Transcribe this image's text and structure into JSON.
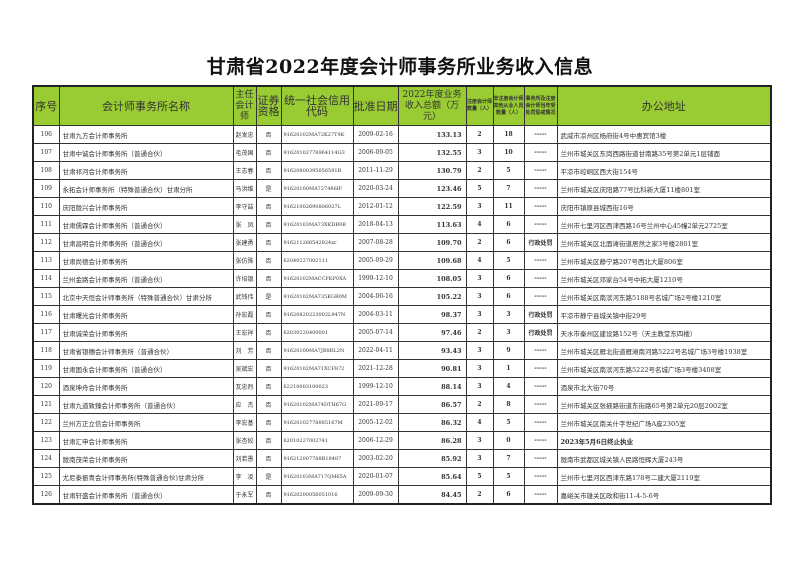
{
  "title": "甘肃省2022年度会计师事务所业务收入信息",
  "headers": {
    "seq": "序号",
    "name": "会计师事务所名称",
    "chief": "主任会计师",
    "securities": "证券资格",
    "credit_code": "统一社会信用代码",
    "approval_date": "批准日期",
    "income": "2022年度业务收入总额（万元）",
    "cpa_count": "注册会计师数量（人）",
    "other_count": "非注册会计师其他从业人员数量（人）",
    "penalty": "事务所及注册会计师当年受处罚惩戒情况",
    "address": "办公地址"
  },
  "rows": [
    {
      "seq": "106",
      "name": "甘肃九方会计师事务所",
      "chief": "赵发忠",
      "securities": "否",
      "code": "91620102MA72K27T9K",
      "date": "2009-02-16",
      "income": "133.13",
      "cpa": "2",
      "other": "18",
      "penalty": "-----",
      "address": "武威市凉州区杨府街4号中惠宾馆3楼"
    },
    {
      "seq": "107",
      "name": "甘肃中诚会计师事务所（普通合伙）",
      "chief": "毛茂国",
      "securities": "否",
      "code": "91620102778964114G3",
      "date": "2006-09-05",
      "income": "132.55",
      "cpa": "3",
      "other": "10",
      "penalty": "-----",
      "address": "兰州市城关区东岗西路街道甘南路35号第2单元1层铺面"
    },
    {
      "seq": "108",
      "name": "甘肃祁河会计师事务所",
      "chief": "王志春",
      "securities": "否",
      "code": "91620800395056591B",
      "date": "2011-11-29",
      "income": "130.79",
      "cpa": "2",
      "other": "5",
      "penalty": "-----",
      "address": "平凉市崆峒区西大街154号"
    },
    {
      "seq": "109",
      "name": "永拓会计师事务所（特殊普通合伙）甘肃分所",
      "chief": "马洪维",
      "securities": "是",
      "code": "91620100MA727486IF",
      "date": "2020-03-24",
      "income": "123.46",
      "cpa": "5",
      "other": "7",
      "penalty": "-----",
      "address": "兰州市城关区庆阳路77号比科新大厦11楼801室"
    },
    {
      "seq": "110",
      "name": "庆阳陇兴会计师事务所",
      "chief": "李守喆",
      "securities": "否",
      "code": "91621002690806027L",
      "date": "2012-01-12",
      "income": "122.59",
      "cpa": "3",
      "other": "11",
      "penalty": "-----",
      "address": "庆阳市镇原县城西街16号"
    },
    {
      "seq": "111",
      "name": "甘肃儒霖会计师事务所（普通合伙）",
      "chief": "张　凤",
      "securities": "否",
      "code": "91620103MA73XKDB9B",
      "date": "2018-04-13",
      "income": "113.63",
      "cpa": "4",
      "other": "6",
      "penalty": "-----",
      "address": "兰州市七里河区西津西路16号兰州中心45幢2单元2725室"
    },
    {
      "seq": "112",
      "name": "甘肃昌明会计师事务所（普通合伙）",
      "chief": "张建勇",
      "securities": "否",
      "code": "916211266542924xr",
      "date": "2007-08-28",
      "income": "109.70",
      "cpa": "2",
      "other": "6",
      "penalty": "行政处罚",
      "address": "兰州市城关区北面滩街道居然之家3号楼2801室"
    },
    {
      "seq": "113",
      "name": "甘肃尚德会计师事务所",
      "chief": "张仿殊",
      "securities": "否",
      "code": "62040227002111",
      "date": "2005-09-29",
      "income": "109.68",
      "cpa": "4",
      "other": "5",
      "penalty": "-----",
      "address": "兰州市城关区静宁路207号西北大厦806室"
    },
    {
      "seq": "114",
      "name": "兰州金路会计师事务所（普通合伙）",
      "chief": "许培银",
      "securities": "否",
      "code": "91620102MACCFKP0XA",
      "date": "1999-12-10",
      "income": "108.05",
      "cpa": "3",
      "other": "6",
      "penalty": "-----",
      "address": "兰州市城关区邓家台54号中拓大厦1210号"
    },
    {
      "seq": "115",
      "name": "北京中天恒会计师事务所（特殊普通合伙）甘肃分所",
      "chief": "武钱伟",
      "securities": "是",
      "code": "91620102MA735KGB0M",
      "date": "2004-06-16",
      "income": "105.22",
      "cpa": "3",
      "other": "6",
      "penalty": "-----",
      "address": "兰州市城关区南滨河东路5188号名城广场2号楼1210室"
    },
    {
      "seq": "116",
      "name": "甘肃曙光会计师事务所",
      "chief": "孙宏磊",
      "securities": "否",
      "code": "91620820223002L947N",
      "date": "2004-03-11",
      "income": "98.37",
      "cpa": "3",
      "other": "3",
      "penalty": "行政处罚",
      "address": "平凉市静宁县城关镇中街29号"
    },
    {
      "seq": "117",
      "name": "甘肃诚荣会计师事务所",
      "chief": "王宏祥",
      "securities": "否",
      "code": "62030220400001",
      "date": "2005-07-14",
      "income": "97.46",
      "cpa": "2",
      "other": "3",
      "penalty": "行政处罚",
      "address": "天水市秦州区建设路152号（天主教堂东四楼）"
    },
    {
      "seq": "118",
      "name": "甘肃省银穗会计师事务所（普通合伙）",
      "chief": "刘　芳",
      "securities": "否",
      "code": "91620100MA7JB8RL2N",
      "date": "2022-04-11",
      "income": "93.43",
      "cpa": "3",
      "other": "9",
      "penalty": "-----",
      "address": "兰州市城关区雁北街道雁滩南河路5222号名城广场3号楼1938室"
    },
    {
      "seq": "119",
      "name": "甘肃国永会计师事务所（普通合伙）",
      "chief": "吴斌宏",
      "securities": "否",
      "code": "91620102MA71XCF872",
      "date": "2021-12-28",
      "income": "90.81",
      "cpa": "3",
      "other": "1",
      "penalty": "-----",
      "address": "兰州市城关区南滨河东路5222号名城广场3号楼3408室"
    },
    {
      "seq": "120",
      "name": "酒泉坤舟会计师事务所",
      "chief": "瓦忠烈",
      "securities": "否",
      "code": "62210003100023",
      "date": "1999-12-10",
      "income": "88.14",
      "cpa": "3",
      "other": "4",
      "penalty": "-----",
      "address": "酒泉市北大街70号"
    },
    {
      "seq": "121",
      "name": "甘肃九道致臻会计师事务所（普通合伙）",
      "chief": "应　杰",
      "securities": "否",
      "code": "91620102MA74DTH67G",
      "date": "2021-09-17",
      "income": "86.57",
      "cpa": "2",
      "other": "8",
      "penalty": "-----",
      "address": "兰州市城关区张掖路街道东街路65号第2单元20层2002室"
    },
    {
      "seq": "122",
      "name": "兰州方正立信会计师事务所",
      "chief": "李宏基",
      "securities": "否",
      "code": "91620102778885167M",
      "date": "2005-12-02",
      "income": "86.32",
      "cpa": "4",
      "other": "5",
      "penalty": "-----",
      "address": "兰州市城关区南关什字世纪广场A座2305室"
    },
    {
      "seq": "123",
      "name": "甘肃汇申会计师事务所",
      "chief": "张杏姣",
      "securities": "否",
      "code": "62010227002741",
      "date": "2006-12-29",
      "income": "86.28",
      "cpa": "3",
      "other": "0",
      "penalty": "-----",
      "address": "2023年5月6日终止执业",
      "address_bold": true
    },
    {
      "seq": "124",
      "name": "陇南茂荣会计师事务所",
      "chief": "刘若愚",
      "securities": "否",
      "code": "916212007788B18487",
      "date": "2003-02-20",
      "income": "85.92",
      "cpa": "3",
      "other": "7",
      "penalty": "-----",
      "address": "陇南市武都区城关镇人民路恒辉大厦243号"
    },
    {
      "seq": "125",
      "name": "尤尼泰振青会计师事务所(特殊普通合伙)甘肃分所",
      "chief": "李　凌",
      "securities": "是",
      "code": "91620103MA717QM65A",
      "date": "2020-01-07",
      "income": "85.64",
      "cpa": "5",
      "other": "5",
      "penalty": "-----",
      "address": "兰州市七里河区西津东路178号二建大厦2119室"
    },
    {
      "seq": "126",
      "name": "甘肃轩盛会计师事务所（普通合伙）",
      "chief": "于永军",
      "securities": "否",
      "code": "91620200056051016",
      "date": "2009-09-30",
      "income": "84.45",
      "cpa": "2",
      "other": "6",
      "penalty": "-----",
      "address": "嘉峪关市雄关区政和街11-4-5-6号"
    }
  ],
  "colors": {
    "header_bg": "#99cc33",
    "border": "#333333"
  }
}
